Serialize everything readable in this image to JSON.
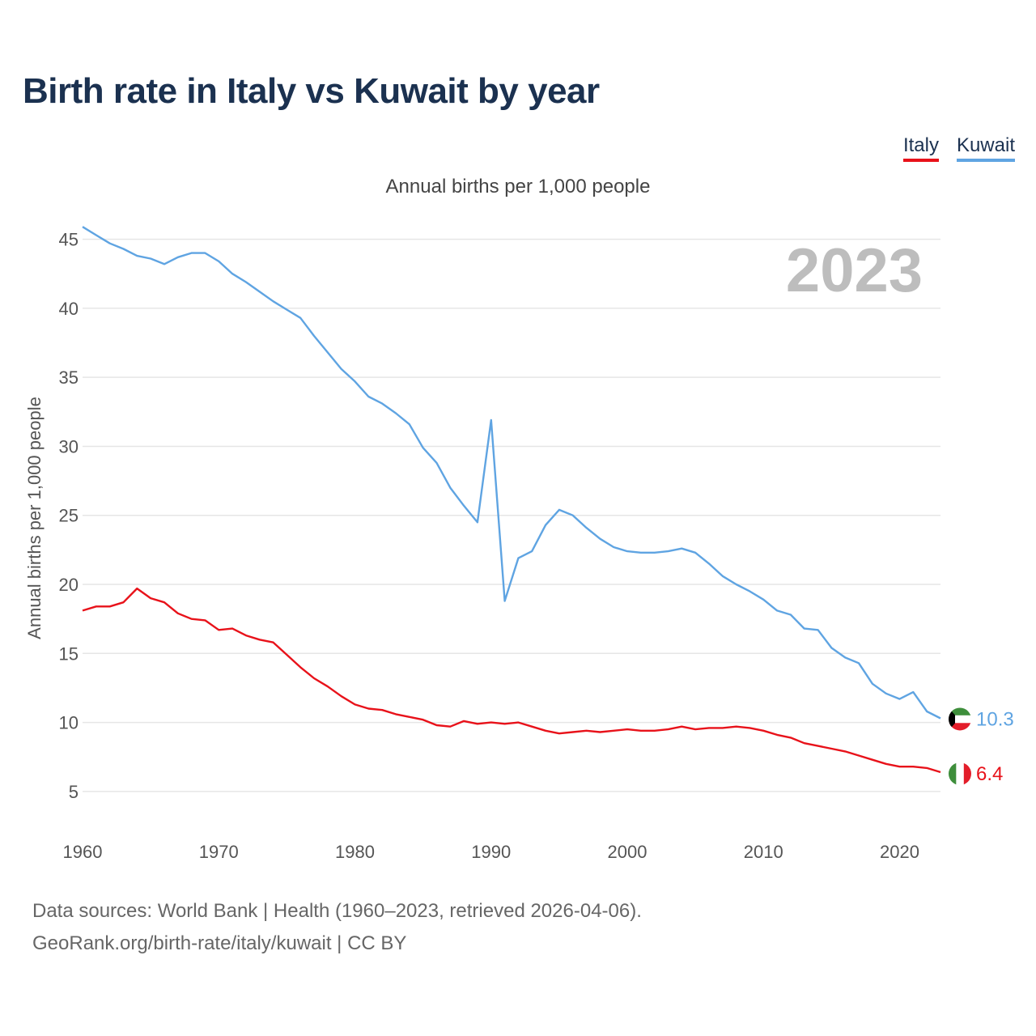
{
  "title": "Birth rate in Italy vs Kuwait by year",
  "legend": {
    "italy": "Italy",
    "kuwait": "Kuwait"
  },
  "subtitle": "Annual births per 1,000 people",
  "footer": {
    "line1": "Data sources: World Bank | Health (1960–2023, retrieved 2026-04-06).",
    "line2": "GeoRank.org/birth-rate/italy/kuwait | CC BY"
  },
  "colors": {
    "italy": "#e8121a",
    "kuwait": "#5fa4e2",
    "grid": "#e6e6e6",
    "title": "#1b3150"
  },
  "chart_data": {
    "type": "line",
    "title": "Birth rate in Italy vs Kuwait by year",
    "ylabel": "Annual births per 1,000 people",
    "xlabel": "",
    "year_label": "2023",
    "xlim": [
      1960,
      2023
    ],
    "ylim": [
      3,
      46.5
    ],
    "x_ticks": [
      1960,
      1970,
      1980,
      1990,
      2000,
      2010,
      2020
    ],
    "y_ticks": [
      5,
      10,
      15,
      20,
      25,
      30,
      35,
      40,
      45
    ],
    "x": [
      1960,
      1961,
      1962,
      1963,
      1964,
      1965,
      1966,
      1967,
      1968,
      1969,
      1970,
      1971,
      1972,
      1973,
      1974,
      1975,
      1976,
      1977,
      1978,
      1979,
      1980,
      1981,
      1982,
      1983,
      1984,
      1985,
      1986,
      1987,
      1988,
      1989,
      1990,
      1991,
      1992,
      1993,
      1994,
      1995,
      1996,
      1997,
      1998,
      1999,
      2000,
      2001,
      2002,
      2003,
      2004,
      2005,
      2006,
      2007,
      2008,
      2009,
      2010,
      2011,
      2012,
      2013,
      2014,
      2015,
      2016,
      2017,
      2018,
      2019,
      2020,
      2021,
      2022,
      2023
    ],
    "series": [
      {
        "name": "Kuwait",
        "end_label": "10.3",
        "values": [
          45.9,
          45.3,
          44.7,
          44.3,
          43.8,
          43.6,
          43.2,
          43.7,
          44.0,
          44.0,
          43.4,
          42.5,
          41.9,
          41.2,
          40.5,
          39.9,
          39.3,
          38.0,
          36.8,
          35.6,
          34.7,
          33.6,
          33.1,
          32.4,
          31.6,
          29.9,
          28.8,
          27.0,
          25.7,
          24.5,
          31.9,
          18.8,
          21.9,
          22.4,
          24.3,
          25.4,
          25.0,
          24.1,
          23.3,
          22.7,
          22.4,
          22.3,
          22.3,
          22.4,
          22.6,
          22.3,
          21.5,
          20.6,
          20.0,
          19.5,
          18.9,
          18.1,
          17.8,
          16.8,
          16.7,
          15.4,
          14.7,
          14.3,
          12.8,
          12.1,
          11.7,
          12.2,
          10.8,
          10.3
        ]
      },
      {
        "name": "Italy",
        "end_label": "6.4",
        "values": [
          18.1,
          18.4,
          18.4,
          18.7,
          19.7,
          19.0,
          18.7,
          17.9,
          17.5,
          17.4,
          16.7,
          16.8,
          16.3,
          16.0,
          15.8,
          14.9,
          14.0,
          13.2,
          12.6,
          11.9,
          11.3,
          11.0,
          10.9,
          10.6,
          10.4,
          10.2,
          9.8,
          9.7,
          10.1,
          9.9,
          10.0,
          9.9,
          10.0,
          9.7,
          9.4,
          9.2,
          9.3,
          9.4,
          9.3,
          9.4,
          9.5,
          9.4,
          9.4,
          9.5,
          9.7,
          9.5,
          9.6,
          9.6,
          9.7,
          9.6,
          9.4,
          9.1,
          8.9,
          8.5,
          8.3,
          8.1,
          7.9,
          7.6,
          7.3,
          7.0,
          6.8,
          6.8,
          6.7,
          6.4
        ]
      }
    ]
  }
}
